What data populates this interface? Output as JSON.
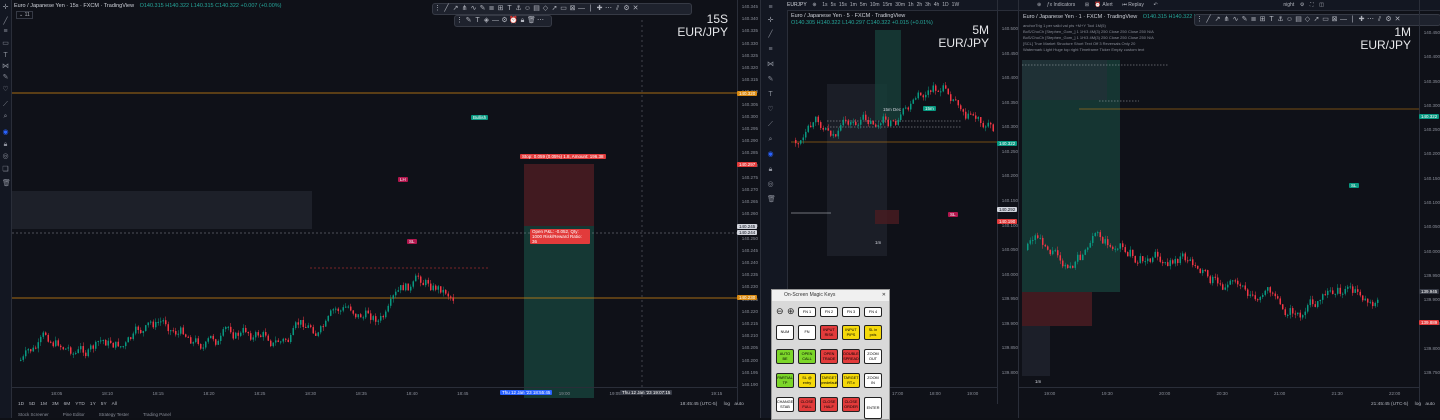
{
  "left": {
    "title": "Euro / Japanese Yen · 15s · FXCM · TradingView",
    "ohlc": "O140.315 H140.322 L140.315 C140.322 +0.007 (+0.00%)",
    "tf": "15S",
    "pair": "EUR/JPY",
    "prices": [
      "140.345",
      "140.340",
      "140.335",
      "140.330",
      "140.325",
      "140.320",
      "140.315",
      "140.310",
      "140.305",
      "140.300",
      "140.295",
      "140.290",
      "140.285",
      "140.280",
      "140.275",
      "140.270",
      "140.265",
      "140.260",
      "140.255",
      "140.250",
      "140.245",
      "140.240",
      "140.235",
      "140.230",
      "140.225",
      "140.220",
      "140.215",
      "140.210",
      "140.205",
      "140.200",
      "140.195",
      "140.190"
    ],
    "times": [
      "18:05",
      "18:10",
      "18:15",
      "18:20",
      "18:25",
      "18:30",
      "18:35",
      "18:40",
      "18:45",
      "18:50",
      "19:00",
      "19:05",
      "19:10",
      "19:15"
    ],
    "ranges": [
      "1D",
      "5D",
      "1M",
      "3M",
      "6M",
      "YTD",
      "1Y",
      "5Y",
      "All"
    ],
    "clock": "18:45:45 (UTC-5)",
    "log": "log",
    "auto": "auto",
    "tag_orange_top": "140.320",
    "tag_red": "140.297",
    "tag_white1": "140.245",
    "tag_white2": "140.244",
    "tag_orange_bot": "140.230",
    "stop_label": "Stop: 0.059 (0.05%) 1.8, Amount: 196.38",
    "target_label": "Open P&L: -0.052, Qty: 1000 Risk/Reward Ratio: 36",
    "bullish": "Bullish",
    "lh": "LH",
    "sl": "SL",
    "date1": "Thu 12 Jan '23  18:55:45",
    "date2": "Thu 12 Jan '23  19:07:15",
    "bottom_tabs": [
      "Stock Screener",
      "Pine Editor",
      "Strategy Tester",
      "Trading Panel"
    ]
  },
  "mid": {
    "title": "Euro / Japanese Yen · 5 · FXCM · TradingView",
    "symbol": "EURJPY",
    "intervals": [
      "1s",
      "5s",
      "15s",
      "1m",
      "5m",
      "10m",
      "15m",
      "30m",
      "1h",
      "2h",
      "3h",
      "4h",
      "1D",
      "1W"
    ],
    "ohlc": "O140.305 H140.322 L140.297 C140.322 +0.015 (+0.01%)",
    "tf": "5M",
    "pair": "EUR/JPY",
    "prices": [
      "140.500",
      "140.450",
      "140.400",
      "140.350",
      "140.300",
      "140.250",
      "140.200",
      "140.150",
      "140.100",
      "140.050",
      "140.000",
      "139.950",
      "139.900",
      "139.850",
      "139.800"
    ],
    "times": [
      "15:00",
      "16:00",
      "17:00",
      "18:00",
      "19:00"
    ],
    "label_15m": "15m Dec",
    "tag_15m": "15m",
    "tag_1m": "1m",
    "sl": "SL",
    "tag_price": "140.322",
    "tag_sub": "140.292",
    "tag_red": "140.190"
  },
  "keys": {
    "title": "On-Screen Magic Keys",
    "rows": [
      [
        "FN 1",
        "FN 2",
        "FN 3",
        "FN 4"
      ],
      [
        "NUM",
        "FN",
        "INPUT RISK",
        "INPUT PIPS",
        "SL in pxls"
      ],
      [
        "AUTO BE",
        "OPEN CALL",
        "OPEN TRADE",
        "DOUBLE SPREAD",
        "ZOOM OUT"
      ],
      [
        "PARTIAL TP",
        "SL @ entry",
        "TARGET predefault",
        "TARGET RT.x",
        "ZOOM IN"
      ],
      [
        "CHANGE STAB",
        "CLOSE FULL",
        "CLOSE HALF",
        "CLOSE ORDER",
        "ENTER"
      ]
    ],
    "colors": {
      "white": "#ffffff",
      "red": "#e23b3b",
      "yellow": "#f5d90a",
      "green": "#7cd62a",
      "lightgreen": "#8fe34a"
    }
  },
  "right": {
    "title": "Euro / Japanese Yen · 1 · FXCM · TradingView",
    "ohlc": "O140.315 H140.322 L140.315 C140.322",
    "tf": "1M",
    "pair": "EUR/JPY",
    "indicators_label": "Indicators",
    "alert_label": "Alert",
    "replay_label": "Replay",
    "layout_name": "night",
    "legend": [
      "anchorTrig 1 per valid val pts +M+Y Tool 1M(5)",
      "BoS/ChoCh [Stephen_Gom_] 1 1H/3 4M(3) 250 Close 250 Close 250 N/A",
      "BoS/ChoCh [Stephen_Gom_] 1 1H/3 4M(3) 250 Close 250 Close 250 N/A",
      "[SCL] True Market Structure Short Text Off 3 Reversals Only 20",
      "Watermark Light Huge top right Timeframe Ticker Empty custom text"
    ],
    "prices": [
      "140.450",
      "140.400",
      "140.350",
      "140.300",
      "140.250",
      "140.200",
      "140.150",
      "140.100",
      "140.050",
      "140.000",
      "139.950",
      "139.900",
      "139.850",
      "139.800",
      "139.750"
    ],
    "times": [
      "19:00",
      "19:30",
      "20:00",
      "20:30",
      "21:00",
      "21:30",
      "22:00"
    ],
    "clock": "21:45:45 (UTC-5)",
    "log": "log",
    "auto": "auto",
    "tag_price": "140.322",
    "tag_grey": "139.945",
    "tag_red": "139.889",
    "tag_1m": "1m",
    "sl": "SL",
    "bottom_tabs": [
      "Trading Panel"
    ]
  }
}
